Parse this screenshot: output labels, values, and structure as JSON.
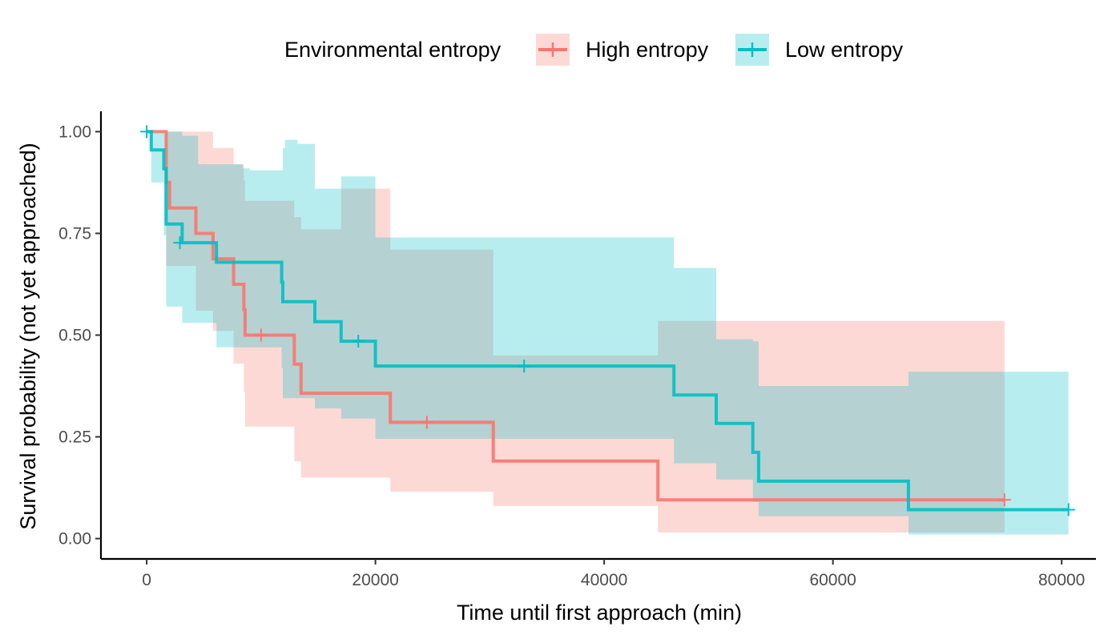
{
  "chart_data": {
    "type": "line",
    "subtype": "kaplan-meier step curves with confidence bands and censor marks",
    "xlabel": "Time until first approach (min)",
    "ylabel": "Survival probability (not yet approached)",
    "xlim": [
      -4000,
      83000
    ],
    "ylim": [
      -0.05,
      1.05
    ],
    "x_ticks": [
      0,
      20000,
      40000,
      60000,
      80000
    ],
    "x_tick_labels": [
      "0",
      "20000",
      "40000",
      "60000",
      "80000"
    ],
    "y_ticks": [
      0,
      0.25,
      0.5,
      0.75,
      1
    ],
    "y_tick_labels": [
      "0.00",
      "0.25",
      "0.50",
      "0.75",
      "1.00"
    ],
    "grid": false,
    "legend": {
      "title": "Environmental entropy",
      "position": "top",
      "entries": [
        "High entropy",
        "Low entropy"
      ]
    },
    "series": [
      {
        "name": "High entropy",
        "color": "#F8766D",
        "fill": "#F8766D",
        "steps": [
          [
            0,
            1.0
          ],
          [
            1700,
            0.875
          ],
          [
            2000,
            0.8125
          ],
          [
            4300,
            0.75
          ],
          [
            5800,
            0.6875
          ],
          [
            7600,
            0.625
          ],
          [
            8500,
            0.5625
          ],
          [
            8600,
            0.5
          ],
          [
            12900,
            0.4286
          ],
          [
            13500,
            0.3571
          ],
          [
            21300,
            0.2857
          ],
          [
            30300,
            0.1905
          ],
          [
            44700,
            0.0952
          ]
        ],
        "end_x": 75000,
        "upper": [
          [
            0,
            1.0
          ],
          [
            1700,
            1.0
          ],
          [
            2000,
            1.0
          ],
          [
            4300,
            1.0
          ],
          [
            5800,
            0.96
          ],
          [
            7600,
            0.92
          ],
          [
            8500,
            0.88
          ],
          [
            8600,
            0.83
          ],
          [
            12900,
            0.79
          ],
          [
            13500,
            0.76
          ],
          [
            17000,
            0.86
          ],
          [
            21300,
            0.71
          ],
          [
            30300,
            0.45
          ],
          [
            44700,
            0.535
          ],
          [
            53400,
            0.535
          ]
        ],
        "lower": [
          [
            0,
            1.0
          ],
          [
            1700,
            0.67
          ],
          [
            2000,
            0.67
          ],
          [
            4300,
            0.56
          ],
          [
            5800,
            0.51
          ],
          [
            7600,
            0.43
          ],
          [
            8500,
            0.36
          ],
          [
            8600,
            0.275
          ],
          [
            12900,
            0.19
          ],
          [
            13500,
            0.15
          ],
          [
            21300,
            0.115
          ],
          [
            30300,
            0.08
          ],
          [
            44700,
            0.015
          ]
        ],
        "censored": [
          [
            10000,
            0.5
          ],
          [
            24500,
            0.2857
          ],
          [
            75000,
            0.0952
          ]
        ]
      },
      {
        "name": "Low entropy",
        "color": "#00BFC4",
        "fill": "#00BFC4",
        "steps": [
          [
            0,
            1.0
          ],
          [
            400,
            0.955
          ],
          [
            1500,
            0.909
          ],
          [
            1700,
            0.773
          ],
          [
            3100,
            0.727
          ],
          [
            6100,
            0.679
          ],
          [
            11800,
            0.63
          ],
          [
            11900,
            0.582
          ],
          [
            14700,
            0.533
          ],
          [
            17000,
            0.485
          ],
          [
            20000,
            0.424
          ],
          [
            46100,
            0.353
          ],
          [
            49800,
            0.283
          ],
          [
            53000,
            0.212
          ],
          [
            53500,
            0.141
          ],
          [
            66600,
            0.071
          ]
        ],
        "end_x": 80600,
        "upper": [
          [
            0,
            1.0
          ],
          [
            400,
            1.0
          ],
          [
            1500,
            1.0
          ],
          [
            1700,
            1.0
          ],
          [
            3100,
            0.99
          ],
          [
            4500,
            0.92
          ],
          [
            6100,
            0.92
          ],
          [
            8400,
            0.91
          ],
          [
            9000,
            0.905
          ],
          [
            11800,
            0.905
          ],
          [
            11900,
            0.96
          ],
          [
            12100,
            0.98
          ],
          [
            13200,
            0.97
          ],
          [
            14700,
            0.86
          ],
          [
            17000,
            0.89
          ],
          [
            20000,
            0.74
          ],
          [
            46100,
            0.665
          ],
          [
            49800,
            0.49
          ],
          [
            53000,
            0.485
          ],
          [
            53500,
            0.375
          ],
          [
            66600,
            0.41
          ]
        ],
        "lower": [
          [
            0,
            1.0
          ],
          [
            400,
            0.875
          ],
          [
            1500,
            0.745
          ],
          [
            1700,
            0.57
          ],
          [
            3100,
            0.53
          ],
          [
            6100,
            0.47
          ],
          [
            11800,
            0.42
          ],
          [
            11900,
            0.345
          ],
          [
            14700,
            0.32
          ],
          [
            17000,
            0.295
          ],
          [
            20000,
            0.245
          ],
          [
            46100,
            0.185
          ],
          [
            49800,
            0.145
          ],
          [
            53000,
            0.09
          ],
          [
            53500,
            0.055
          ],
          [
            66600,
            0.01
          ]
        ],
        "censored": [
          [
            0,
            1.0
          ],
          [
            2900,
            0.727
          ],
          [
            18500,
            0.485
          ],
          [
            33000,
            0.424
          ],
          [
            80600,
            0.071
          ]
        ]
      }
    ]
  }
}
